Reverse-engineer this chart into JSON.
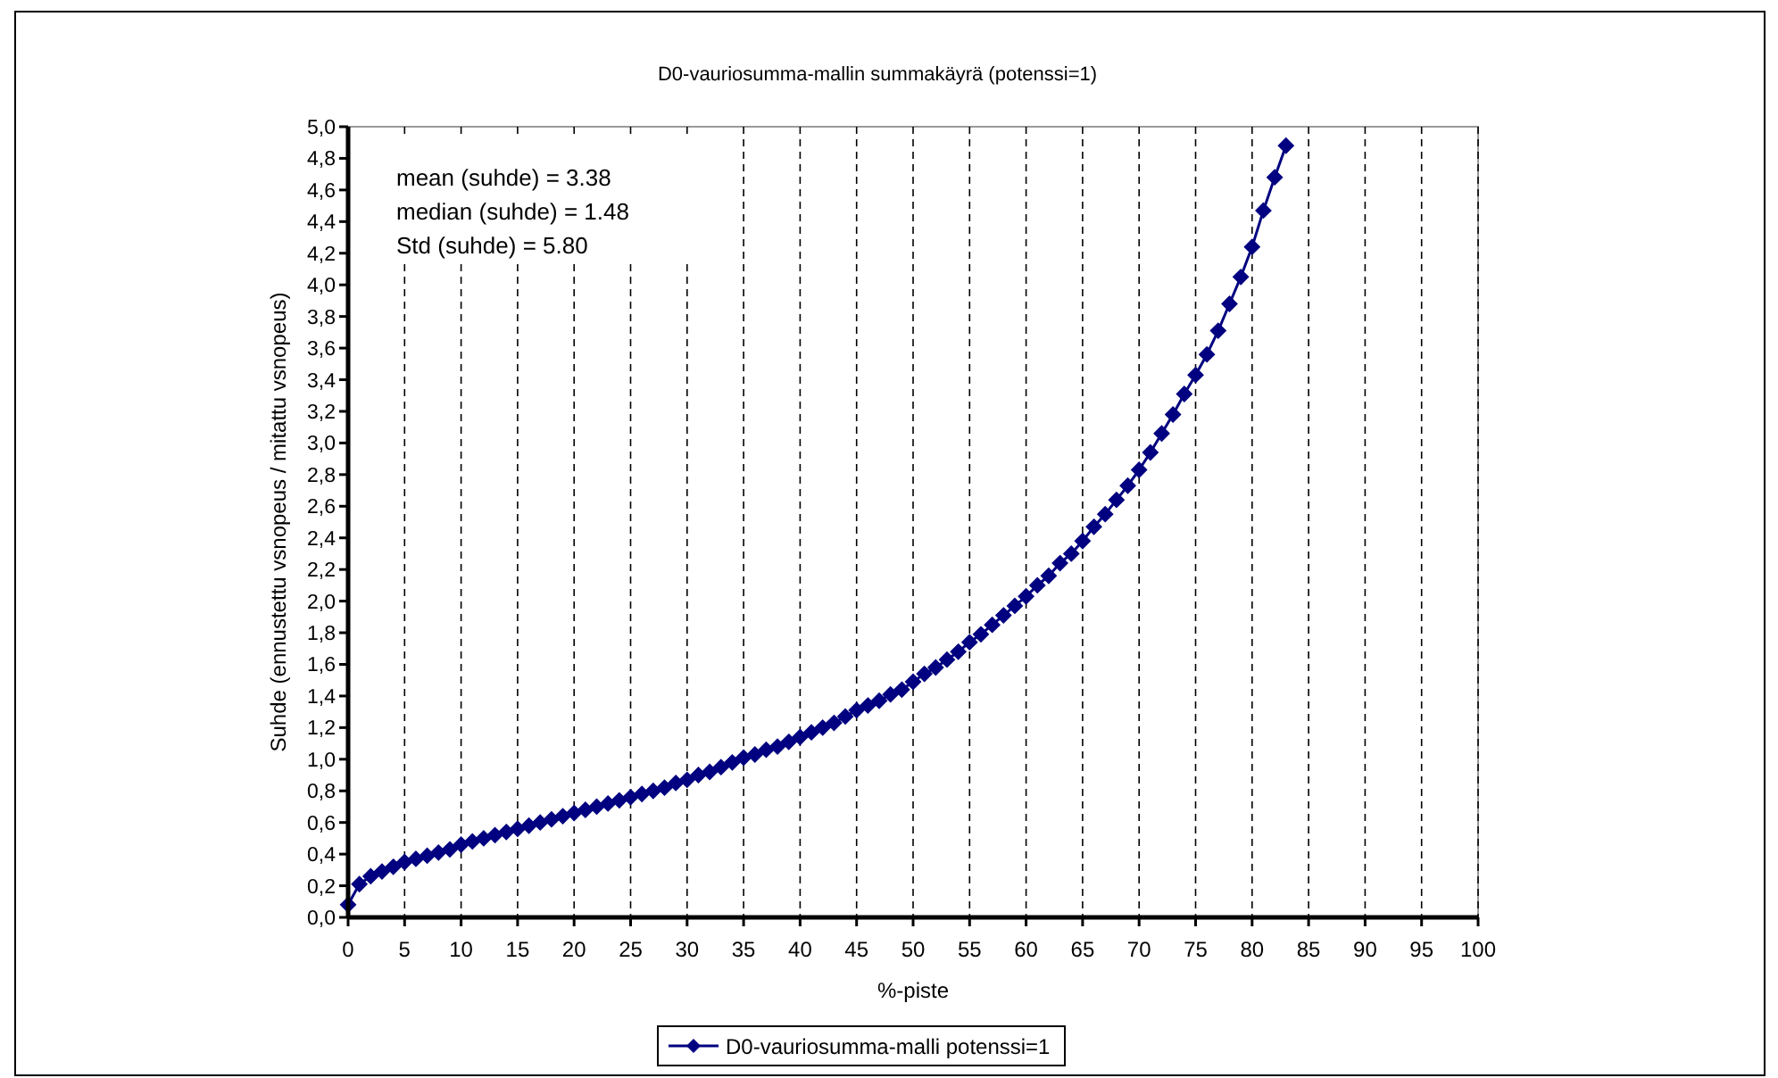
{
  "chart_data": {
    "type": "line",
    "title": "D0-vauriosumma-mallin summakäyrä (potenssi=1)",
    "xlabel": "%-piste",
    "ylabel": "Suhde (ennustettu vsnopeus / mitattu vsnopeus)",
    "annotations": [
      "mean (suhde) = 3.38",
      "median (suhde) = 1.48",
      "Std (suhde) = 5.80"
    ],
    "x": [
      0,
      1,
      2,
      3,
      4,
      5,
      6,
      7,
      8,
      9,
      10,
      11,
      12,
      13,
      14,
      15,
      16,
      17,
      18,
      19,
      20,
      21,
      22,
      23,
      24,
      25,
      26,
      27,
      28,
      29,
      30,
      31,
      32,
      33,
      34,
      35,
      36,
      37,
      38,
      39,
      40,
      41,
      42,
      43,
      44,
      45,
      46,
      47,
      48,
      49,
      50,
      51,
      52,
      53,
      54,
      55,
      56,
      57,
      58,
      59,
      60,
      61,
      62,
      63,
      64,
      65,
      66,
      67,
      68,
      69,
      70,
      71,
      72,
      73,
      74,
      75,
      76,
      77,
      78,
      79,
      80,
      81,
      82,
      83
    ],
    "series": [
      {
        "name": "D0-vauriosumma-malli potenssi=1",
        "color": "#000080",
        "values": [
          0.08,
          0.21,
          0.26,
          0.29,
          0.32,
          0.35,
          0.37,
          0.39,
          0.41,
          0.43,
          0.46,
          0.48,
          0.5,
          0.52,
          0.54,
          0.56,
          0.58,
          0.6,
          0.62,
          0.64,
          0.66,
          0.68,
          0.7,
          0.72,
          0.74,
          0.76,
          0.78,
          0.8,
          0.82,
          0.85,
          0.87,
          0.9,
          0.92,
          0.95,
          0.98,
          1.01,
          1.03,
          1.06,
          1.08,
          1.11,
          1.14,
          1.17,
          1.2,
          1.23,
          1.27,
          1.31,
          1.34,
          1.37,
          1.41,
          1.44,
          1.49,
          1.54,
          1.58,
          1.63,
          1.68,
          1.74,
          1.79,
          1.85,
          1.91,
          1.97,
          2.03,
          2.1,
          2.16,
          2.24,
          2.3,
          2.38,
          2.47,
          2.55,
          2.64,
          2.73,
          2.83,
          2.94,
          3.06,
          3.18,
          3.31,
          3.43,
          3.56,
          3.71,
          3.88,
          4.05,
          4.24,
          4.47,
          4.68,
          4.88
        ]
      }
    ],
    "xlim": [
      0,
      100
    ],
    "xticks": [
      0,
      5,
      10,
      15,
      20,
      25,
      30,
      35,
      40,
      45,
      50,
      55,
      60,
      65,
      70,
      75,
      80,
      85,
      90,
      95,
      100
    ],
    "ylim": [
      0,
      5
    ],
    "yticks": [
      {
        "value": 0,
        "label": "0,0"
      },
      {
        "value": 0.2,
        "label": "0,2"
      },
      {
        "value": 0.4,
        "label": "0,4"
      },
      {
        "value": 0.6,
        "label": "0,6"
      },
      {
        "value": 0.8,
        "label": "0,8"
      },
      {
        "value": 1,
        "label": "1,0"
      },
      {
        "value": 1.2,
        "label": "1,2"
      },
      {
        "value": 1.4,
        "label": "1,4"
      },
      {
        "value": 1.6,
        "label": "1,6"
      },
      {
        "value": 1.8,
        "label": "1,8"
      },
      {
        "value": 2,
        "label": "2,0"
      },
      {
        "value": 2.2,
        "label": "2,2"
      },
      {
        "value": 2.4,
        "label": "2,4"
      },
      {
        "value": 2.6,
        "label": "2,6"
      },
      {
        "value": 2.8,
        "label": "2,8"
      },
      {
        "value": 3,
        "label": "3,0"
      },
      {
        "value": 3.2,
        "label": "3,2"
      },
      {
        "value": 3.4,
        "label": "3,4"
      },
      {
        "value": 3.6,
        "label": "3,6"
      },
      {
        "value": 3.8,
        "label": "3,8"
      },
      {
        "value": 4,
        "label": "4,0"
      },
      {
        "value": 4.2,
        "label": "4,2"
      },
      {
        "value": 4.4,
        "label": "4,4"
      },
      {
        "value": 4.6,
        "label": "4,6"
      },
      {
        "value": 4.8,
        "label": "4,8"
      },
      {
        "value": 5,
        "label": "5,0"
      }
    ],
    "grid": "x",
    "legend": "bottom",
    "marker": "diamond",
    "line_style": "solid"
  }
}
